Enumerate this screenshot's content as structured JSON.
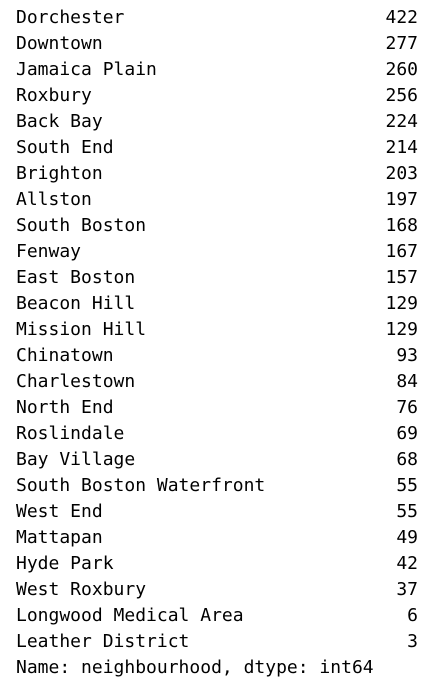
{
  "output": {
    "rows": [
      {
        "name": "Dorchester",
        "count": "422"
      },
      {
        "name": "Downtown",
        "count": "277"
      },
      {
        "name": "Jamaica Plain",
        "count": "260"
      },
      {
        "name": "Roxbury",
        "count": "256"
      },
      {
        "name": "Back Bay",
        "count": "224"
      },
      {
        "name": "South End",
        "count": "214"
      },
      {
        "name": "Brighton",
        "count": "203"
      },
      {
        "name": "Allston",
        "count": "197"
      },
      {
        "name": "South Boston",
        "count": "168"
      },
      {
        "name": "Fenway",
        "count": "167"
      },
      {
        "name": "East Boston",
        "count": "157"
      },
      {
        "name": "Beacon Hill",
        "count": "129"
      },
      {
        "name": "Mission Hill",
        "count": "129"
      },
      {
        "name": "Chinatown",
        "count": "93"
      },
      {
        "name": "Charlestown",
        "count": "84"
      },
      {
        "name": "North End",
        "count": "76"
      },
      {
        "name": "Roslindale",
        "count": "69"
      },
      {
        "name": "Bay Village",
        "count": "68"
      },
      {
        "name": "South Boston Waterfront",
        "count": "55"
      },
      {
        "name": "West End",
        "count": "55"
      },
      {
        "name": "Mattapan",
        "count": "49"
      },
      {
        "name": "Hyde Park",
        "count": "42"
      },
      {
        "name": "West Roxbury",
        "count": "37"
      },
      {
        "name": "Longwood Medical Area",
        "count": "6"
      },
      {
        "name": "Leather District",
        "count": "3"
      }
    ],
    "footer": "Name: neighbourhood, dtype: int64"
  }
}
